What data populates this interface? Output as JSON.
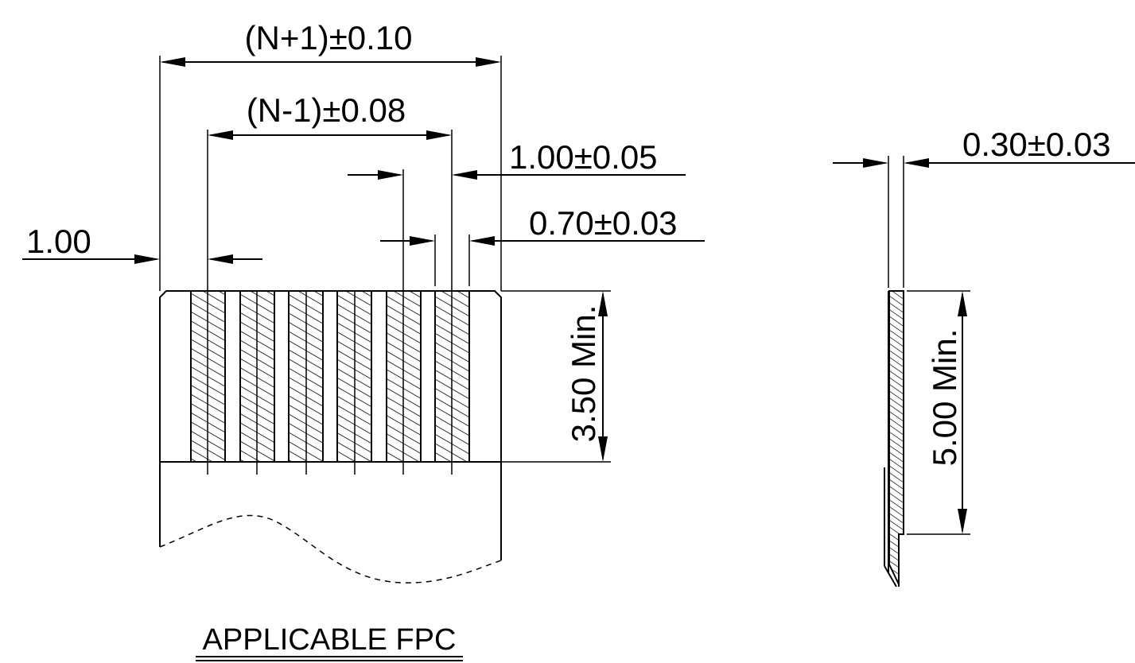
{
  "drawing": {
    "dimensions": {
      "overall_width": "(N+1)±0.10",
      "pitch_span": "(N-1)±0.08",
      "pitch": "1.00±0.05",
      "pad_width": "0.70±0.03",
      "edge_offset": "1.00",
      "contact_length": "3.50 Min.",
      "thickness": "0.30±0.03",
      "stiffener_length": "5.00 Min."
    },
    "caption": "APPLICABLE FPC",
    "pad_count": 6
  }
}
